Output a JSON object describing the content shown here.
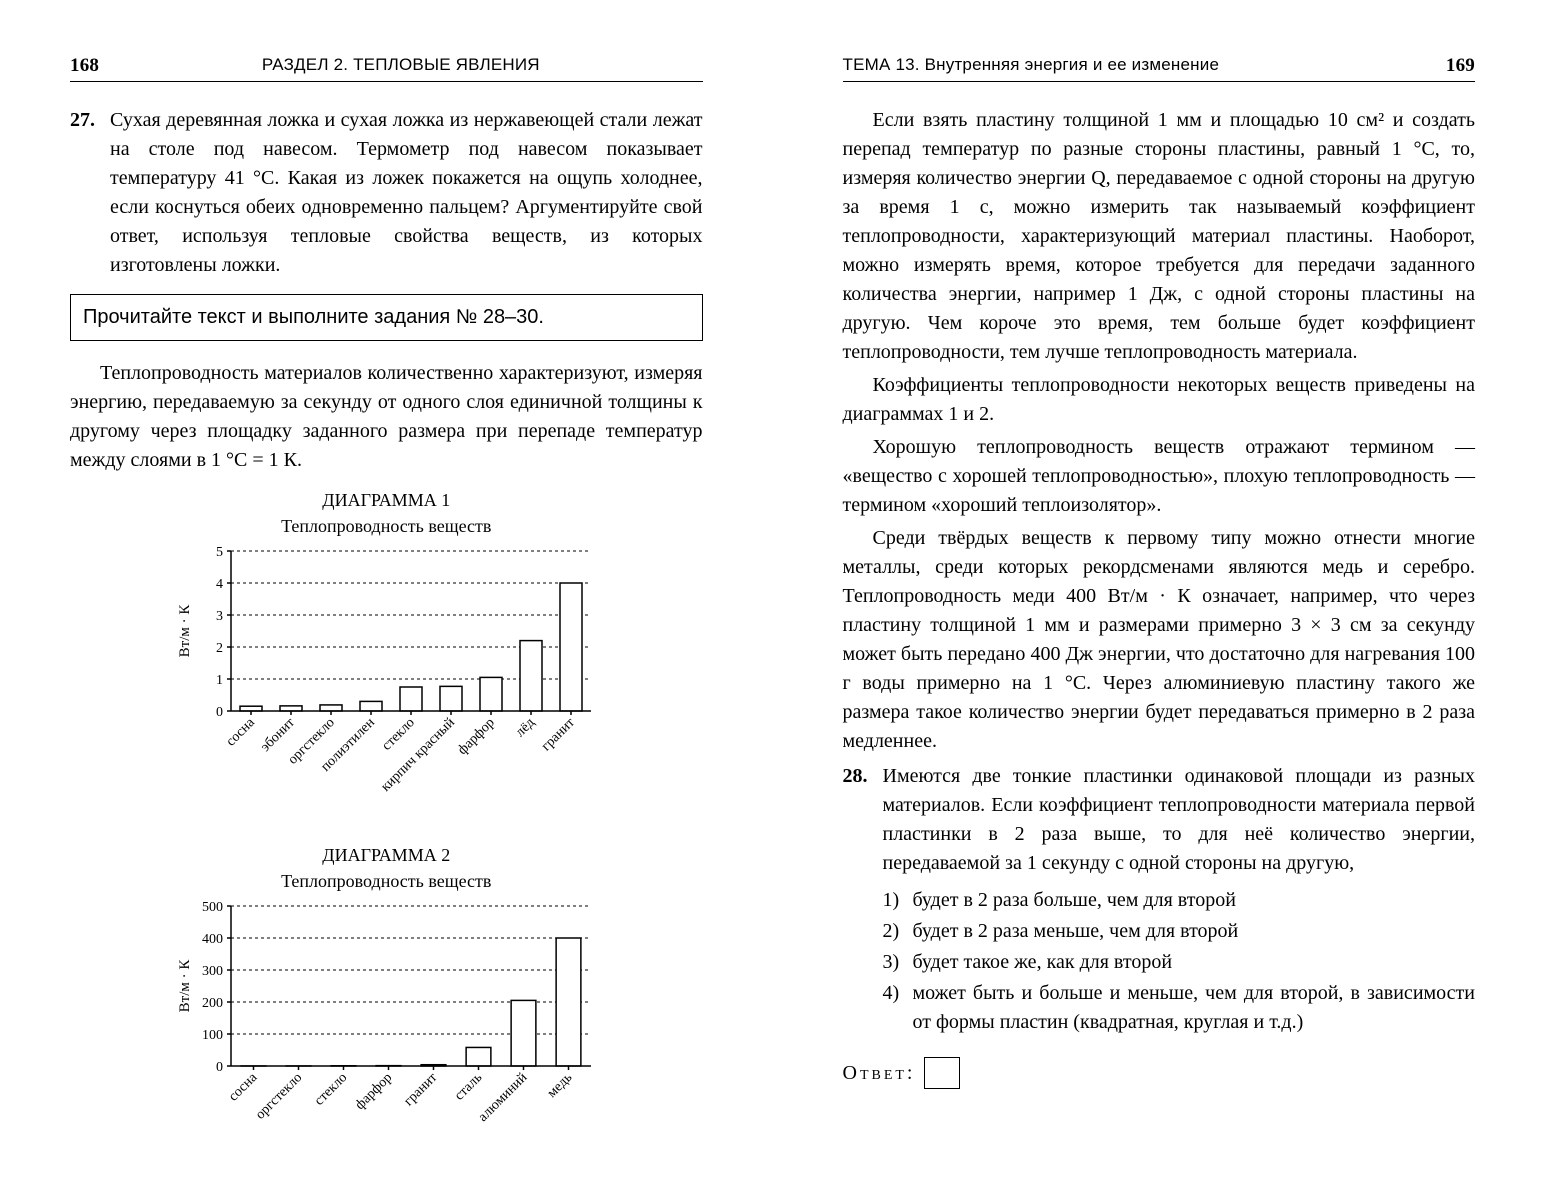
{
  "left": {
    "page_number": "168",
    "header_title": "РАЗДЕЛ 2. ТЕПЛОВЫЕ ЯВЛЕНИЯ",
    "ex27_num": "27.",
    "ex27_text": "Сухая деревянная ложка и сухая ложка из нержавеющей стали лежат на столе под навесом. Термометр под навесом показывает температуру 41 °С. Какая из ложек покажется на ощупь холоднее, если коснуться обеих одновременно пальцем? Аргументируйте свой ответ, используя тепловые свойства веществ, из которых изготовлены ложки.",
    "readbox": "Прочитайте текст и выполните задания № 28–30.",
    "para1": "Теплопроводность материалов количественно характеризуют, измеряя энергию, передаваемую за секунду от одного слоя единичной толщины к другому через площадку заданного размера при перепаде температур между слоями в 1 °С = 1 К.",
    "chart1": {
      "title": "ДИАГРАММА 1",
      "subtitle": "Теплопроводность веществ",
      "ylabel": "Вт/м · К",
      "ymax": 5,
      "ytick_step": 1,
      "categories": [
        "сосна",
        "эбонит",
        "оргстекло",
        "полиэтилен",
        "стекло",
        "кирпич красный",
        "фарфор",
        "лёд",
        "гранит"
      ],
      "values": [
        0.15,
        0.16,
        0.19,
        0.3,
        0.75,
        0.77,
        1.05,
        2.2,
        4.0
      ],
      "bar_fill": "#ffffff",
      "bar_stroke": "#000000",
      "grid_dash": "3,3",
      "axis_color": "#000000",
      "bg": "#ffffff",
      "font_size": 14,
      "angle": -45
    },
    "chart2": {
      "title": "ДИАГРАММА 2",
      "subtitle": "Теплопроводность веществ",
      "ylabel": "Вт/м · К",
      "ymax": 500,
      "ytick_step": 100,
      "categories": [
        "сосна",
        "оргстекло",
        "стекло",
        "фарфор",
        "гранит",
        "сталь",
        "алюминий",
        "медь"
      ],
      "values": [
        0.15,
        0.19,
        0.75,
        1.05,
        4.0,
        58,
        205,
        400
      ],
      "bar_fill": "#ffffff",
      "bar_stroke": "#000000",
      "grid_dash": "3,3",
      "axis_color": "#000000",
      "bg": "#ffffff",
      "font_size": 14,
      "angle": -45
    }
  },
  "right": {
    "page_number": "169",
    "header_title": "ТЕМА 13. Внутренняя энергия и ее изменение",
    "para1": "Если взять пластину толщиной 1 мм и площадью 10 см² и создать перепад температур по разные стороны пластины, равный 1 °С, то, измеряя количество энергии Q, передаваемое с одной стороны на другую за время 1 с, можно измерить так называемый коэффициент теплопроводности, характеризующий материал пластины. Наоборот, можно измерять время, которое требуется для передачи заданного количества энергии, например 1 Дж, с одной стороны пластины на другую. Чем короче это время, тем больше будет коэффициент теплопроводности, тем лучше теплопроводность материала.",
    "para2": "Коэффициенты теплопроводности некоторых веществ приведены на диаграммах 1 и 2.",
    "para3": "Хорошую теплопроводность веществ отражают термином — «вещество с хорошей теплопроводностью», плохую теплопроводность — термином «хороший теплоизолятор».",
    "para4": "Среди твёрдых веществ к первому типу можно отнести многие металлы, среди которых рекордсменами являются медь и серебро. Теплопроводность меди 400 Вт/м · К означает, например, что через пластину толщиной 1 мм и размерами примерно 3 × 3 см за секунду может быть передано 400 Дж энергии, что достаточно для нагревания 100 г воды примерно на 1 °С. Через алюминиевую пластину такого же размера такое количество энергии будет передаваться примерно в 2 раза медленнее.",
    "ex28_num": "28.",
    "ex28_text": "Имеются две тонкие пластинки одинаковой площади из разных материалов. Если коэффициент теплопроводности материала первой пластинки в 2 раза выше, то для неё количество энергии, передаваемой за 1 секунду с одной стороны на другую,",
    "opts": [
      {
        "n": "1)",
        "t": "будет в 2 раза больше, чем для второй"
      },
      {
        "n": "2)",
        "t": "будет в 2 раза меньше, чем для второй"
      },
      {
        "n": "3)",
        "t": "будет такое же, как для второй"
      },
      {
        "n": "4)",
        "t": "может быть и больше и меньше, чем для второй, в зависимости от формы пластин (квадратная, круглая и т.д.)"
      }
    ],
    "answer_label": "Ответ:"
  }
}
